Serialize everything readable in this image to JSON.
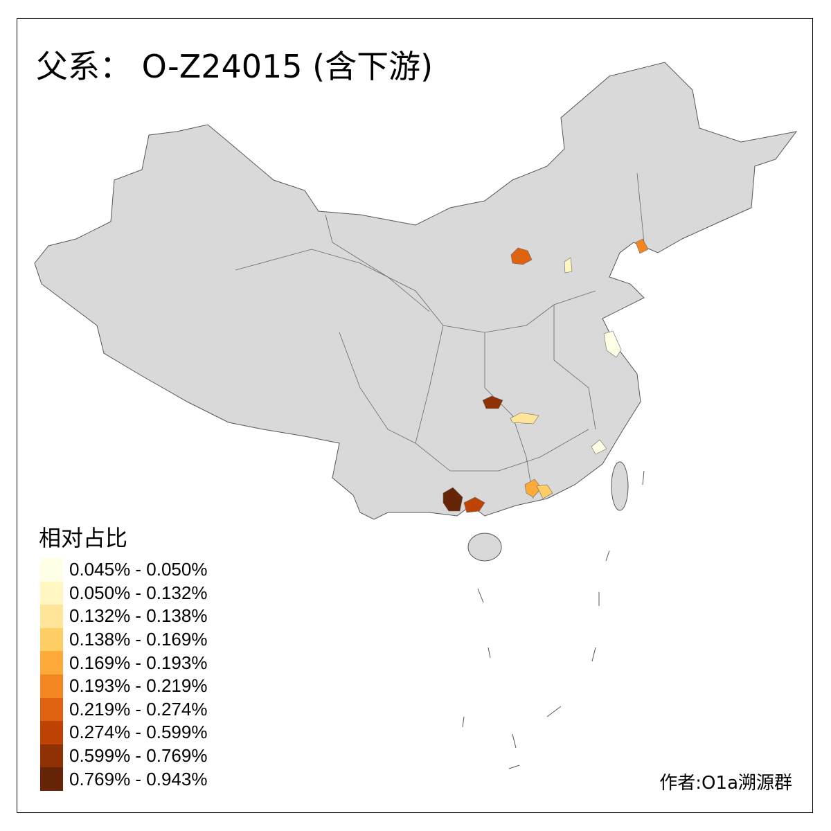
{
  "title": "父系： O-Z24015 (含下游)",
  "legend": {
    "title": "相对占比",
    "items": [
      {
        "label": "0.045% - 0.050%",
        "color": "#FFFFE5"
      },
      {
        "label": "0.050% - 0.132%",
        "color": "#FFF6C2"
      },
      {
        "label": "0.132% - 0.138%",
        "color": "#FEE59A"
      },
      {
        "label": "0.138% - 0.169%",
        "color": "#FECD63"
      },
      {
        "label": "0.169% - 0.193%",
        "color": "#FDAA3A"
      },
      {
        "label": "0.193% - 0.219%",
        "color": "#F48621"
      },
      {
        "label": "0.219% - 0.274%",
        "color": "#DE6210"
      },
      {
        "label": "0.274% - 0.599%",
        "color": "#BE4305"
      },
      {
        "label": "0.599% - 0.769%",
        "color": "#903105"
      },
      {
        "label": "0.769% - 0.943%",
        "color": "#662506"
      }
    ]
  },
  "map": {
    "base_color": "#D9D9D9",
    "border_color": "#555555"
  },
  "credit": "作者:O1a溯源群"
}
